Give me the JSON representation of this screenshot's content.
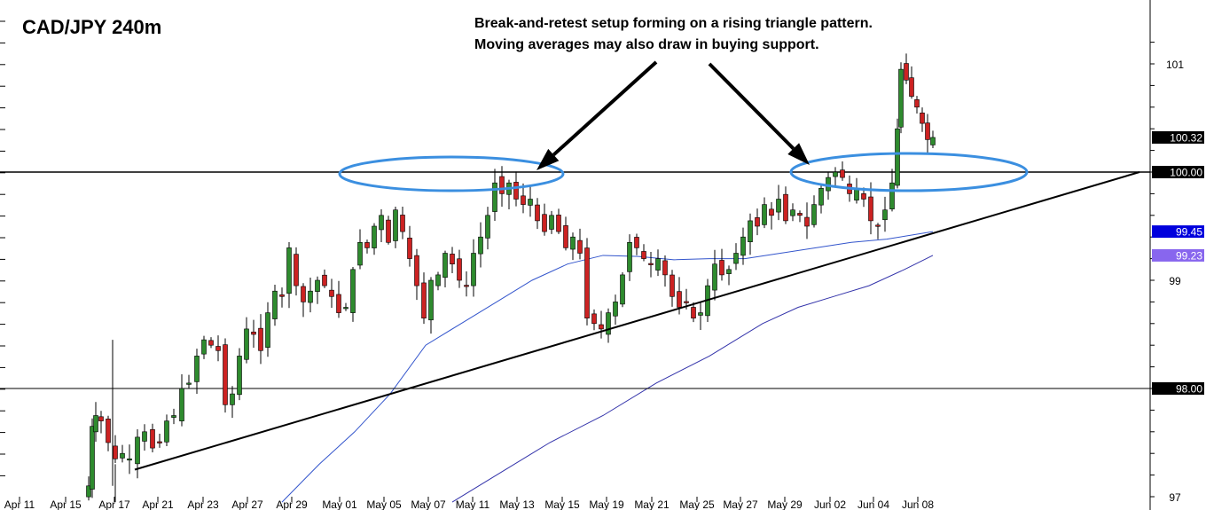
{
  "chart_data": {
    "type": "candlestick",
    "title": "CAD/JPY 240m",
    "annotation": [
      "Break-and-retest setup forming on a rising triangle pattern.",
      "Moving averages may also draw in buying support."
    ],
    "x_tick_labels": [
      "Apr 11",
      "Apr 15",
      "Apr 17",
      "Apr 21",
      "Apr 23",
      "Apr 27",
      "Apr 29",
      "May 01",
      "May 05",
      "May 07",
      "May 11",
      "May 13",
      "May 15",
      "May 19",
      "May 21",
      "May 25",
      "May 27",
      "May 29",
      "Jun 02",
      "Jun 04",
      "Jun 08"
    ],
    "y_tick_labels": [
      "101",
      "99",
      "97"
    ],
    "y_range": [
      96.95,
      101.3
    ],
    "price_badges": [
      {
        "label": "100.32",
        "value": 100.32,
        "bg": "#000000",
        "fg": "#ffffff"
      },
      {
        "label": "100.00",
        "value": 100.0,
        "bg": "#000000",
        "fg": "#ffffff"
      },
      {
        "label": "99.45",
        "value": 99.45,
        "bg": "#0000dd",
        "fg": "#ffffff"
      },
      {
        "label": "99.23",
        "value": 99.23,
        "bg": "#8866ee",
        "fg": "#ffffff"
      },
      {
        "label": "98.00",
        "value": 98.0,
        "bg": "#000000",
        "fg": "#ffffff"
      }
    ],
    "horizontal_levels": [
      100.0,
      98.0
    ],
    "trendline": {
      "from": {
        "x": "Apr 17",
        "y": 97.25
      },
      "to": {
        "x": "Jun 08+",
        "y": 100.0
      }
    },
    "moving_averages": [
      {
        "name": "MA fast",
        "color": "#3355cc"
      },
      {
        "name": "MA slow",
        "color": "#3333aa"
      }
    ],
    "candle_colors": {
      "up": "#2e8b2e",
      "down": "#cc2222",
      "wick": "#000000"
    },
    "grid": false
  }
}
